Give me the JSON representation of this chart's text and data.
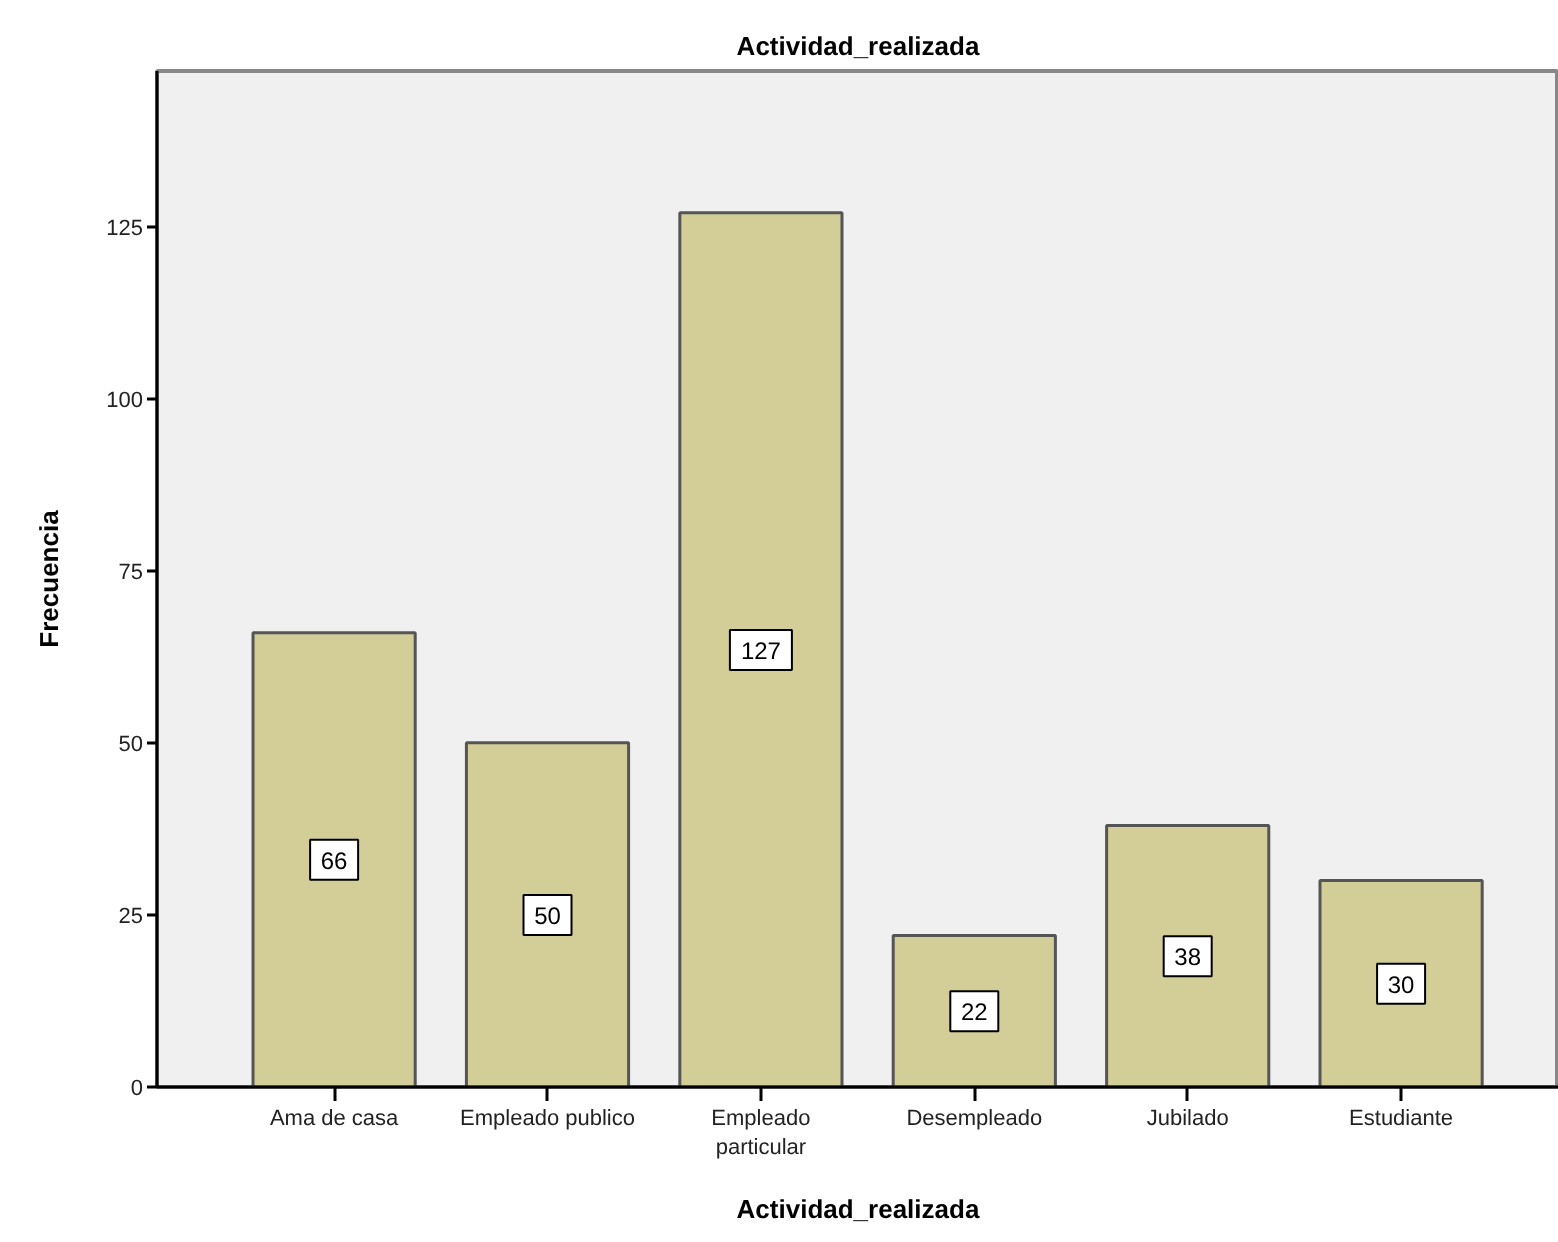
{
  "chart_data": {
    "type": "bar",
    "title": "Actividad_realizada",
    "xlabel": "Actividad_realizada",
    "ylabel": "Frecuencia",
    "categories": [
      "Ama de casa",
      "Empleado publico",
      "Empleado particular",
      "Desempleado",
      "Jubilado",
      "Estudiante"
    ],
    "values": [
      66,
      50,
      127,
      22,
      38,
      30
    ],
    "color": "#d3ce97",
    "ylim": [
      0,
      147.6
    ],
    "yticks": [
      0,
      25,
      50,
      75,
      100,
      125
    ],
    "data_labels": true
  }
}
